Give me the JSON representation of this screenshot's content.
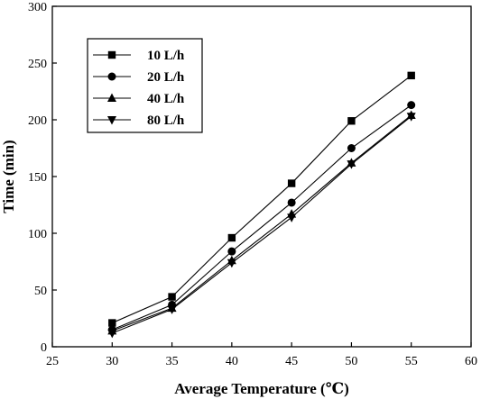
{
  "chart_data": {
    "type": "line",
    "title": "",
    "xlabel": "Average Temperature (℃)",
    "ylabel": "Time (min)",
    "xlim": [
      25,
      60
    ],
    "ylim": [
      0,
      300
    ],
    "xticks": [
      "25",
      "30",
      "35",
      "40",
      "45",
      "50",
      "55",
      "60"
    ],
    "yticks": [
      "0",
      "50",
      "100",
      "150",
      "200",
      "250",
      "300"
    ],
    "grid": false,
    "legend_position": "top-left",
    "x": [
      30,
      35,
      40,
      45,
      50,
      55
    ],
    "series": [
      {
        "name": "10 L/h",
        "marker": "square",
        "values": [
          21,
          44,
          96,
          144,
          199,
          239
        ]
      },
      {
        "name": "20 L/h",
        "marker": "circle",
        "values": [
          15,
          37,
          84,
          127,
          175,
          213
        ]
      },
      {
        "name": "40 L/h",
        "marker": "triangle-up",
        "values": [
          14,
          34,
          76,
          117,
          162,
          204
        ]
      },
      {
        "name": "80 L/h",
        "marker": "triangle-down",
        "values": [
          12,
          33,
          74,
          114,
          161,
          203
        ]
      }
    ],
    "colors": {
      "line": "#000000",
      "marker": "#000000"
    }
  }
}
